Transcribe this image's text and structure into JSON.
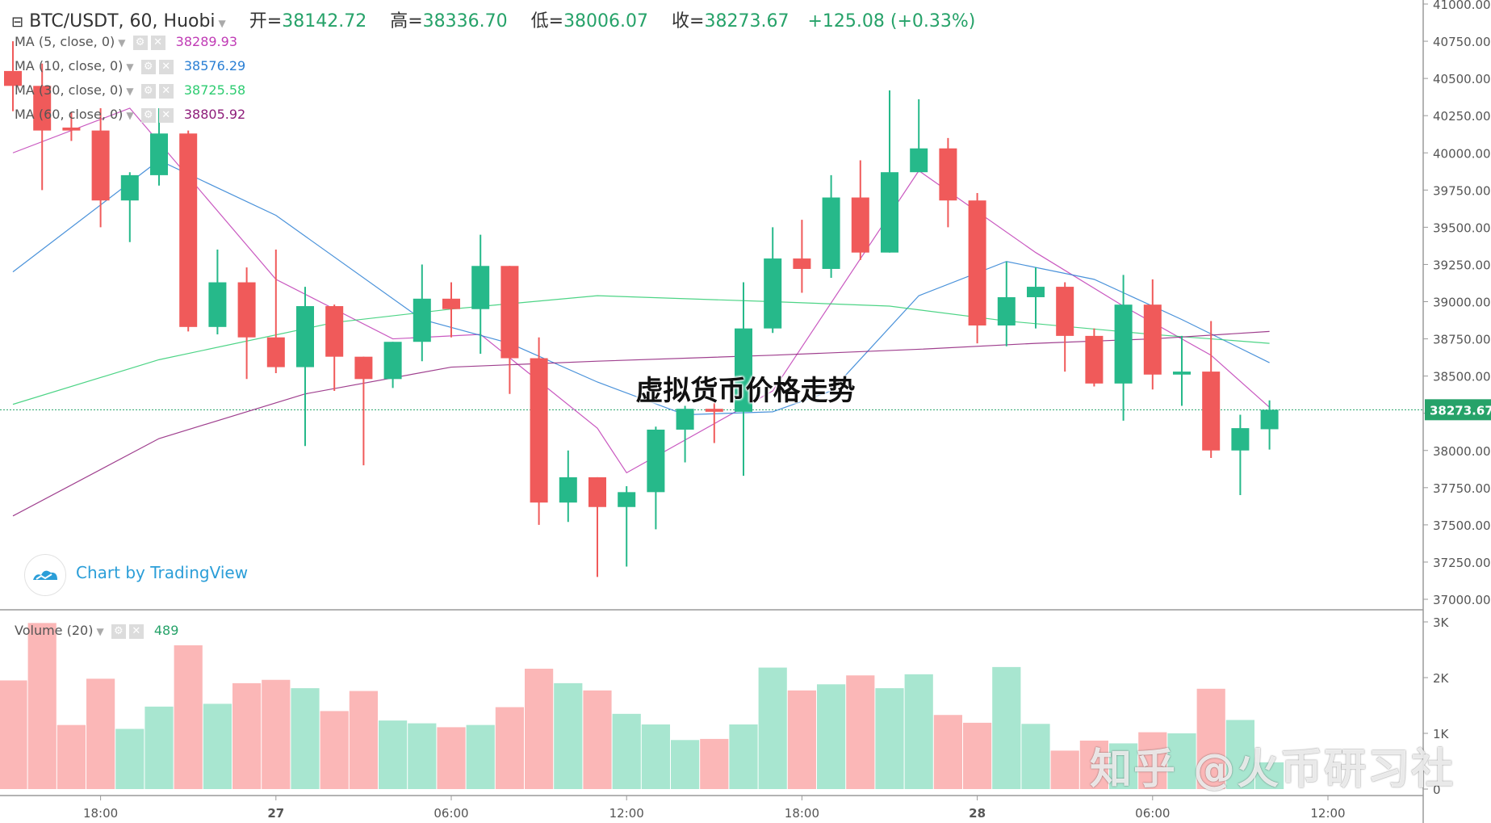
{
  "header": {
    "symbol": "BTC/USDT, 60, Huobi",
    "open_label": "开=",
    "open": "38142.72",
    "high_label": "高=",
    "high": "38336.70",
    "low_label": "低=",
    "low": "38006.07",
    "close_label": "收=",
    "close": "38273.67",
    "change": "+125.08 (+0.33%)"
  },
  "indicators": [
    {
      "label": "MA (5, close, 0)",
      "value": "38289.93",
      "color": "#c03bb5"
    },
    {
      "label": "MA (10, close, 0)",
      "value": "38576.29",
      "color": "#2a7fd4"
    },
    {
      "label": "MA (30, close, 0)",
      "value": "38725.58",
      "color": "#2ecc71"
    },
    {
      "label": "MA (60, close, 0)",
      "value": "38805.92",
      "color": "#8e1d7a"
    }
  ],
  "volume_legend": {
    "label": "Volume (20)",
    "value": "489"
  },
  "branding": {
    "tradingview": "Chart by TradingView"
  },
  "watermarks": {
    "title": "虚拟货币价格走势",
    "brand": "知乎 @火币研习社"
  },
  "colors": {
    "up": "#26b98a",
    "down": "#f05a5a",
    "up_vol": "#a8e6d0",
    "down_vol": "#fbb7b7"
  },
  "chart_data": {
    "type": "candlestick",
    "price_axis": {
      "ticks": [
        "37000.00",
        "37250.00",
        "37500.00",
        "37750.00",
        "38000.00",
        "38250.00",
        "38500.00",
        "38750.00",
        "39000.00",
        "39250.00",
        "39500.00",
        "39750.00",
        "40000.00",
        "40250.00",
        "40500.00",
        "40750.00",
        "41000.00"
      ],
      "range": [
        37000,
        41000
      ],
      "last_price_label": "38273.67"
    },
    "volume_axis": {
      "ticks": [
        "0",
        "1K",
        "2K",
        "3K"
      ],
      "range": [
        0,
        3000
      ]
    },
    "time_axis": {
      "ticks": [
        "18:00",
        "27",
        "06:00",
        "12:00",
        "18:00",
        "28",
        "06:00",
        "12:00"
      ],
      "tick_bars": [
        3,
        9,
        15,
        21,
        27,
        33,
        39,
        45
      ],
      "bold": [
        false,
        true,
        false,
        false,
        false,
        true,
        false,
        false
      ]
    },
    "candles": [
      {
        "o": 40550,
        "h": 40750,
        "l": 40280,
        "c": 40450
      },
      {
        "o": 40450,
        "h": 40600,
        "l": 39750,
        "c": 40150
      },
      {
        "o": 40170,
        "h": 40270,
        "l": 40080,
        "c": 40150
      },
      {
        "o": 40150,
        "h": 40300,
        "l": 39500,
        "c": 39680
      },
      {
        "o": 39680,
        "h": 39870,
        "l": 39400,
        "c": 39850
      },
      {
        "o": 39850,
        "h": 40300,
        "l": 39780,
        "c": 40130
      },
      {
        "o": 40130,
        "h": 40150,
        "l": 38800,
        "c": 38830
      },
      {
        "o": 38830,
        "h": 39350,
        "l": 38780,
        "c": 39130
      },
      {
        "o": 39130,
        "h": 39230,
        "l": 38480,
        "c": 38760
      },
      {
        "o": 38760,
        "h": 39350,
        "l": 38520,
        "c": 38560
      },
      {
        "o": 38560,
        "h": 39100,
        "l": 38030,
        "c": 38970
      },
      {
        "o": 38970,
        "h": 38980,
        "l": 38400,
        "c": 38630
      },
      {
        "o": 38630,
        "h": 38630,
        "l": 37900,
        "c": 38480
      },
      {
        "o": 38480,
        "h": 38730,
        "l": 38420,
        "c": 38730
      },
      {
        "o": 38730,
        "h": 39250,
        "l": 38600,
        "c": 39020
      },
      {
        "o": 39020,
        "h": 39130,
        "l": 38760,
        "c": 38950
      },
      {
        "o": 38950,
        "h": 39450,
        "l": 38650,
        "c": 39240
      },
      {
        "o": 39240,
        "h": 39240,
        "l": 38380,
        "c": 38620
      },
      {
        "o": 38620,
        "h": 38760,
        "l": 37500,
        "c": 37650
      },
      {
        "o": 37650,
        "h": 38000,
        "l": 37520,
        "c": 37820
      },
      {
        "o": 37820,
        "h": 37820,
        "l": 37150,
        "c": 37620
      },
      {
        "o": 37620,
        "h": 37760,
        "l": 37220,
        "c": 37720
      },
      {
        "o": 37720,
        "h": 38160,
        "l": 37470,
        "c": 38140
      },
      {
        "o": 38140,
        "h": 38300,
        "l": 37920,
        "c": 38280
      },
      {
        "o": 38280,
        "h": 38320,
        "l": 38050,
        "c": 38260
      },
      {
        "o": 38260,
        "h": 39130,
        "l": 37830,
        "c": 38820
      },
      {
        "o": 38820,
        "h": 39500,
        "l": 38790,
        "c": 39290
      },
      {
        "o": 39290,
        "h": 39550,
        "l": 39060,
        "c": 39220
      },
      {
        "o": 39220,
        "h": 39850,
        "l": 39160,
        "c": 39700
      },
      {
        "o": 39700,
        "h": 39950,
        "l": 39280,
        "c": 39330
      },
      {
        "o": 39330,
        "h": 40420,
        "l": 39330,
        "c": 39870
      },
      {
        "o": 39870,
        "h": 40360,
        "l": 39870,
        "c": 40030
      },
      {
        "o": 40030,
        "h": 40100,
        "l": 39500,
        "c": 39680
      },
      {
        "o": 39680,
        "h": 39730,
        "l": 38720,
        "c": 38840
      },
      {
        "o": 38840,
        "h": 39270,
        "l": 38700,
        "c": 39030
      },
      {
        "o": 39030,
        "h": 39230,
        "l": 38820,
        "c": 39100
      },
      {
        "o": 39100,
        "h": 39130,
        "l": 38530,
        "c": 38770
      },
      {
        "o": 38770,
        "h": 38820,
        "l": 38430,
        "c": 38450
      },
      {
        "o": 38450,
        "h": 39180,
        "l": 38200,
        "c": 38980
      },
      {
        "o": 38980,
        "h": 39150,
        "l": 38410,
        "c": 38510
      },
      {
        "o": 38510,
        "h": 38770,
        "l": 38300,
        "c": 38530
      },
      {
        "o": 38530,
        "h": 38870,
        "l": 37950,
        "c": 38000
      },
      {
        "o": 38000,
        "h": 38240,
        "l": 37700,
        "c": 38150
      },
      {
        "o": 38142.72,
        "h": 38336.7,
        "l": 38006.07,
        "c": 38273.67
      }
    ],
    "volumes": [
      1950,
      2980,
      1150,
      1980,
      1080,
      1480,
      2580,
      1530,
      1900,
      1960,
      1810,
      1400,
      1760,
      1230,
      1180,
      1110,
      1150,
      1470,
      2160,
      1900,
      1770,
      1350,
      1160,
      880,
      900,
      1160,
      2180,
      1770,
      1880,
      2040,
      1810,
      2060,
      1330,
      1190,
      2190,
      1170,
      690,
      870,
      820,
      1020,
      1000,
      1800,
      1240,
      480
    ],
    "ma": [
      {
        "name": "MA (5, close, 0)",
        "color": "#c03bb5",
        "x": [
          0,
          4,
          9,
          13,
          16,
          20,
          21,
          26,
          31,
          35,
          38,
          41,
          43
        ],
        "y": [
          40000,
          40300,
          39150,
          38750,
          38780,
          38150,
          37850,
          38400,
          39880,
          39330,
          38970,
          38640,
          38290
        ]
      },
      {
        "name": "MA (10, close, 0)",
        "color": "#2a7fd4",
        "x": [
          0,
          5,
          9,
          14,
          17,
          20,
          23,
          26,
          28,
          31,
          34,
          37,
          40,
          43
        ],
        "y": [
          39200,
          39950,
          39580,
          38880,
          38720,
          38460,
          38240,
          38260,
          38400,
          39040,
          39270,
          39150,
          38880,
          38590
        ]
      },
      {
        "name": "MA (30, close, 0)",
        "color": "#2ecc71",
        "x": [
          0,
          5,
          11,
          15,
          20,
          26,
          30,
          34,
          39,
          43
        ],
        "y": [
          38310,
          38610,
          38860,
          38950,
          39040,
          39000,
          38970,
          38870,
          38780,
          38720
        ]
      },
      {
        "name": "MA (60, close, 0)",
        "color": "#8e1d7a",
        "x": [
          0,
          5,
          10,
          15,
          20,
          26,
          31,
          35,
          39,
          43
        ],
        "y": [
          37560,
          38080,
          38380,
          38560,
          38600,
          38640,
          38680,
          38720,
          38750,
          38800
        ]
      }
    ]
  }
}
